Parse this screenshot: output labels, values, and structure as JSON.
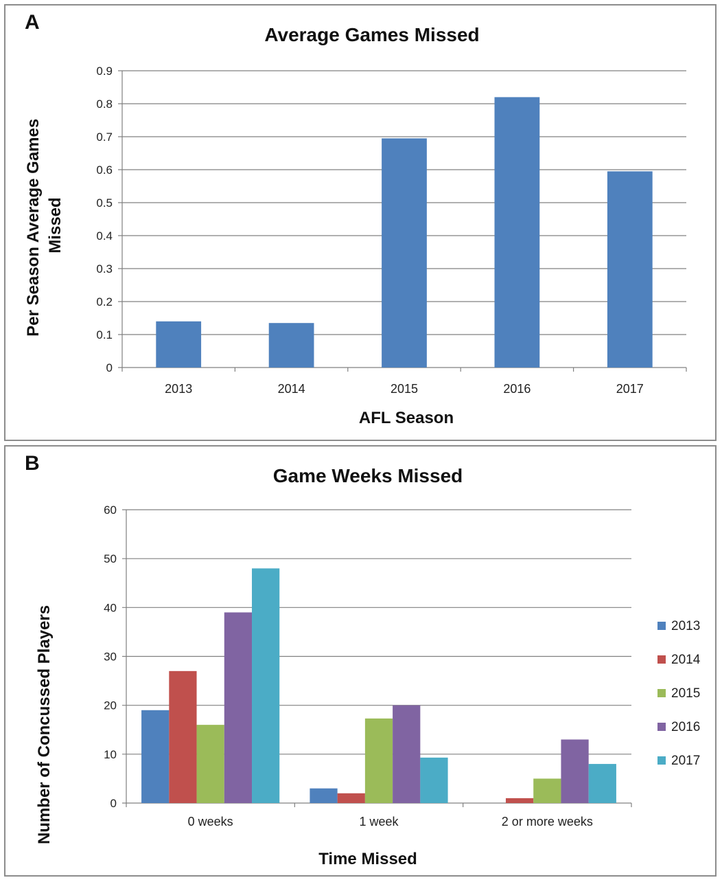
{
  "panels": {
    "a_letter": "A",
    "b_letter": "B"
  },
  "colors": {
    "series": [
      "#4f81bd",
      "#c0504d",
      "#9bbb59",
      "#8064a2",
      "#4bacc6"
    ],
    "grid": "#808080",
    "axis": "#808080"
  },
  "chart_data": [
    {
      "type": "bar",
      "title": "Average Games Missed",
      "xlabel": "AFL Season",
      "ylabel": "Per Season Average Games Missed",
      "categories": [
        "2013",
        "2014",
        "2015",
        "2016",
        "2017"
      ],
      "values": [
        0.14,
        0.135,
        0.695,
        0.82,
        0.595
      ],
      "ylim": [
        0,
        0.9
      ],
      "yticks": [
        "0",
        "0.1",
        "0.2",
        "0.3",
        "0.4",
        "0.5",
        "0.6",
        "0.7",
        "0.8",
        "0.9"
      ],
      "grid": true,
      "legend": "none"
    },
    {
      "type": "bar",
      "title": "Game Weeks Missed",
      "xlabel": "Time Missed",
      "ylabel": "Number of Concussed Players",
      "categories": [
        "0 weeks",
        "1 week",
        "2 or more weeks"
      ],
      "series": [
        {
          "name": "2013",
          "values": [
            19,
            3,
            0
          ]
        },
        {
          "name": "2014",
          "values": [
            27,
            2,
            1
          ]
        },
        {
          "name": "2015",
          "values": [
            16,
            17.3,
            5
          ]
        },
        {
          "name": "2016",
          "values": [
            39,
            20,
            13
          ]
        },
        {
          "name": "2017",
          "values": [
            48,
            9.3,
            8
          ]
        }
      ],
      "ylim": [
        0,
        60
      ],
      "yticks": [
        "0",
        "10",
        "20",
        "30",
        "40",
        "50",
        "60"
      ],
      "grid": true,
      "legend": "right"
    }
  ]
}
